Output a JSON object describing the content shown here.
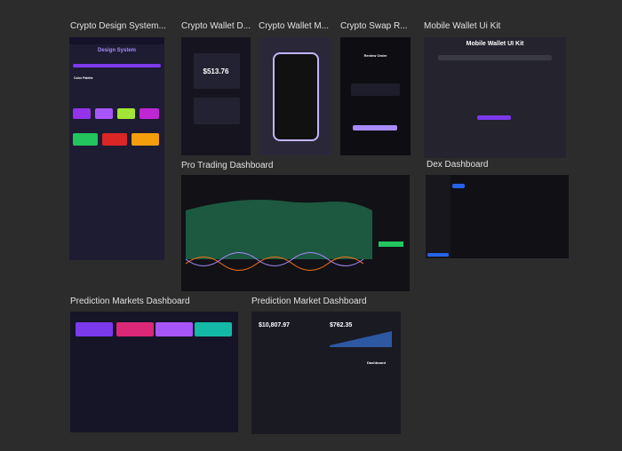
{
  "frames": [
    {
      "label": "Crypto Design System...",
      "texts": [
        "Design System",
        "Color Palette"
      ]
    },
    {
      "label": "Crypto Wallet D...",
      "texts": [
        "$513.76"
      ]
    },
    {
      "label": "Crypto Wallet M..."
    },
    {
      "label": "Crypto Swap R...",
      "texts": [
        "Review Order"
      ]
    },
    {
      "label": "Mobile Wallet Ui Kit",
      "texts": [
        "Mobile Wallet UI Kit"
      ]
    },
    {
      "label": "Pro Trading Dashboard"
    },
    {
      "label": "Dex Dashboard"
    },
    {
      "label": "Prediction Markets Dashboard"
    },
    {
      "label": "Prediction Market Dashboard",
      "texts": [
        "$10,807.97",
        "$762.35",
        "Dashboard"
      ]
    }
  ]
}
